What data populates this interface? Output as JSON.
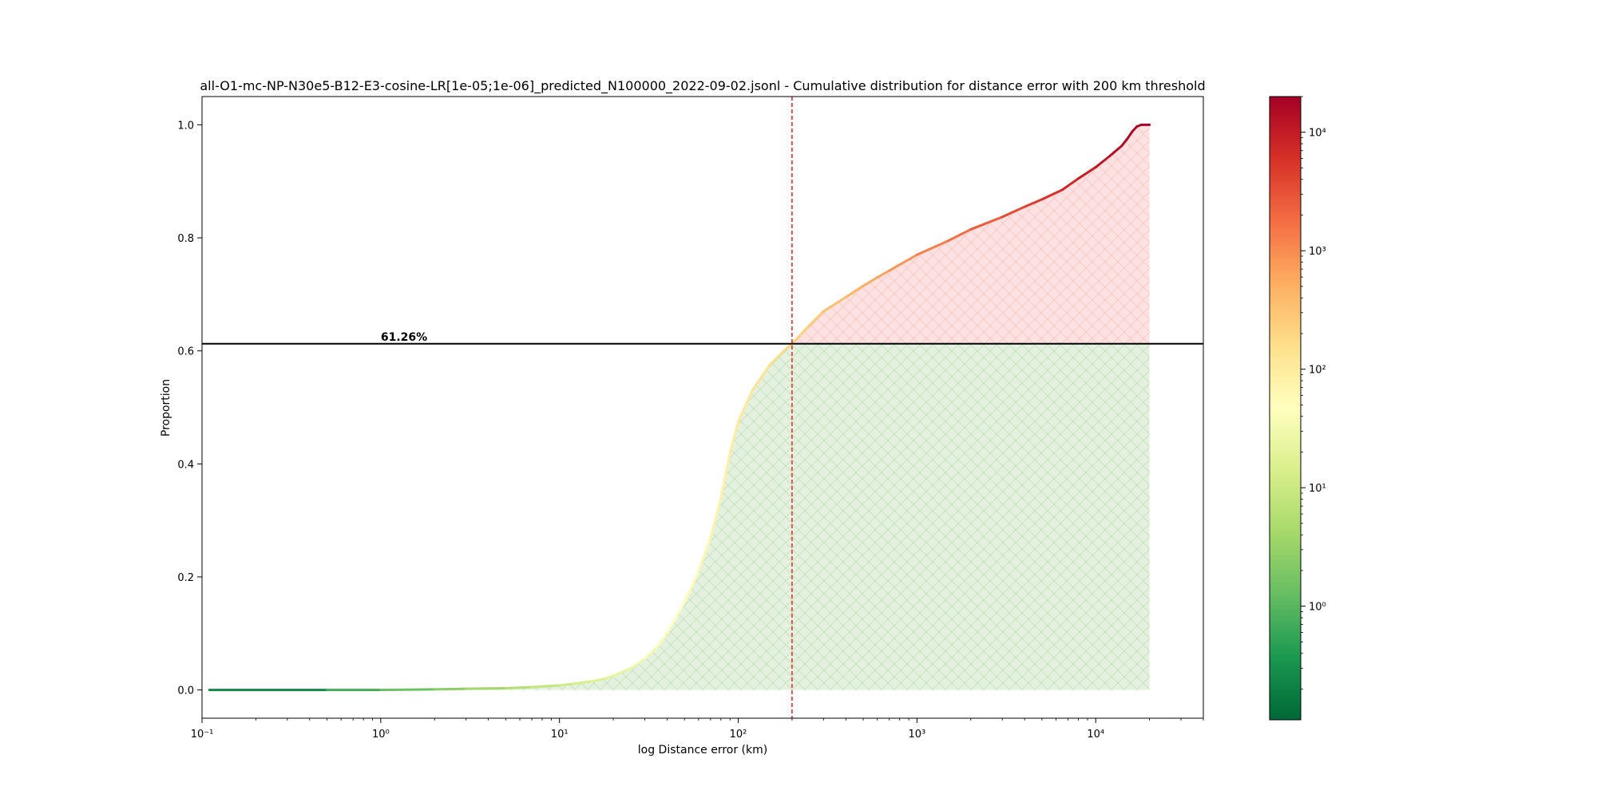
{
  "chart_data": {
    "type": "area",
    "title": "all-O1-mc-NP-N30e5-B12-E3-cosine-LR[1e-05;1e-06]_predicted_N100000_2022-09-02.jsonl - Cumulative distribution for distance error with 200 km threshold",
    "xlabel": "log Distance error (km)",
    "ylabel": "Proportion",
    "x_scale": "log",
    "xlim": [
      0.1,
      40000
    ],
    "ylim": [
      -0.05,
      1.05
    ],
    "x_ticks": [
      {
        "value": 0.1,
        "label": "10⁻¹"
      },
      {
        "value": 1,
        "label": "10⁰"
      },
      {
        "value": 10,
        "label": "10¹"
      },
      {
        "value": 100,
        "label": "10²"
      },
      {
        "value": 1000,
        "label": "10³"
      },
      {
        "value": 10000,
        "label": "10⁴"
      }
    ],
    "y_ticks": [
      {
        "value": 0.0,
        "label": "0.0"
      },
      {
        "value": 0.2,
        "label": "0.2"
      },
      {
        "value": 0.4,
        "label": "0.4"
      },
      {
        "value": 0.6,
        "label": "0.6"
      },
      {
        "value": 0.8,
        "label": "0.8"
      },
      {
        "value": 1.0,
        "label": "1.0"
      }
    ],
    "threshold_x": 200,
    "threshold_y": 0.6126,
    "threshold_label": "61.26%",
    "grid": false,
    "series": [
      {
        "x": [
          0.11,
          0.5,
          1,
          2,
          3,
          5,
          7,
          10,
          12,
          15,
          18,
          20,
          25,
          30,
          35,
          40,
          50,
          60,
          70,
          80,
          90,
          100,
          120,
          150,
          180,
          200,
          250,
          300,
          400,
          500,
          600,
          700,
          1000,
          1500,
          2000,
          3000,
          4000,
          5000,
          6500,
          8000,
          10000,
          12000,
          14000,
          15000,
          16000,
          17000,
          18000,
          20000
        ],
        "y": [
          0.0,
          0.0,
          0.0,
          0.001,
          0.002,
          0.003,
          0.005,
          0.008,
          0.011,
          0.015,
          0.02,
          0.025,
          0.038,
          0.055,
          0.075,
          0.1,
          0.155,
          0.21,
          0.27,
          0.34,
          0.42,
          0.475,
          0.53,
          0.575,
          0.6,
          0.6126,
          0.645,
          0.67,
          0.695,
          0.715,
          0.73,
          0.742,
          0.77,
          0.795,
          0.815,
          0.837,
          0.855,
          0.868,
          0.885,
          0.905,
          0.925,
          0.945,
          0.963,
          0.975,
          0.988,
          0.997,
          1.0,
          1.0
        ]
      }
    ],
    "colorbar": {
      "scale": "log",
      "range": [
        0.11,
        20000
      ],
      "colormap": [
        "#006837",
        "#1a9850",
        "#66bd63",
        "#a6d96a",
        "#d9ef8b",
        "#ffffbf",
        "#fee08b",
        "#fdae61",
        "#f46d43",
        "#d73027",
        "#a50026"
      ],
      "ticks": [
        {
          "value": 1,
          "label": "10⁰"
        },
        {
          "value": 10,
          "label": "10¹"
        },
        {
          "value": 100,
          "label": "10²"
        },
        {
          "value": 1000,
          "label": "10³"
        },
        {
          "value": 10000,
          "label": "10⁴"
        }
      ]
    },
    "colors": {
      "below_fill": "#e3f1de",
      "below_hatch": "#c5e0c0",
      "above_fill": "#ffe1e1",
      "above_hatch": "#f7c7c7",
      "threshold_line": "#e8000b",
      "hline": "#000000"
    }
  }
}
